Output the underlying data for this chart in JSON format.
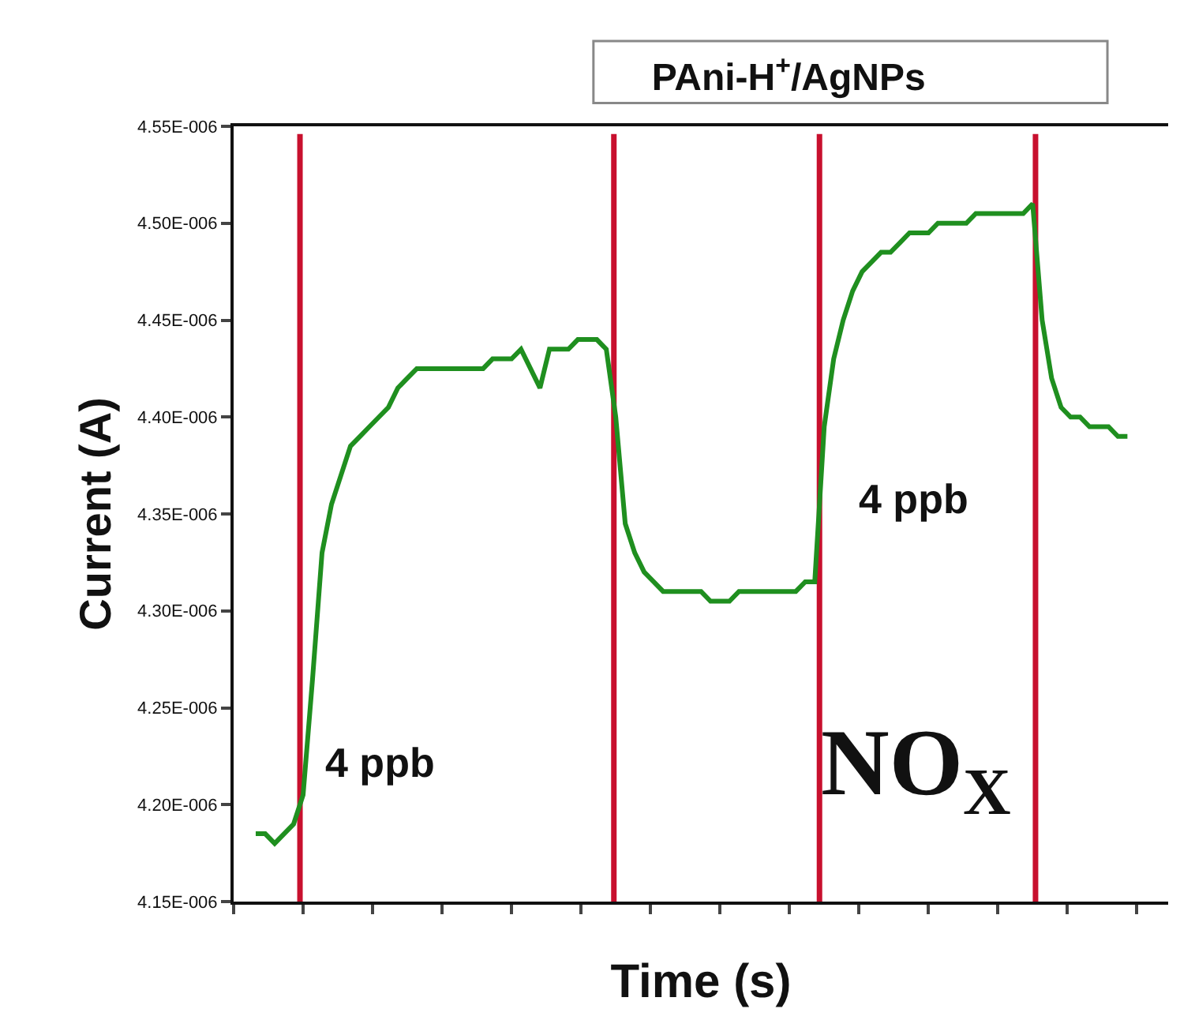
{
  "chart_data": {
    "type": "line",
    "title": "PAni-H$^{+}$/AgNPs",
    "xlabel": "Time (s)",
    "ylabel": "Current (A)",
    "categories": [
      null,
      null,
      null,
      null,
      null,
      null,
      null,
      null,
      null,
      null,
      null,
      null,
      null,
      null,
      null,
      null,
      null,
      null,
      null,
      null,
      null,
      null,
      null,
      null,
      null,
      null,
      null,
      null,
      null,
      null,
      null,
      null,
      null,
      null,
      null,
      null,
      null,
      null,
      null,
      null,
      null,
      null,
      null,
      null,
      null,
      null,
      null,
      null,
      null,
      null,
      null,
      null,
      null,
      null,
      null,
      null,
      null,
      null,
      null,
      null,
      null,
      null,
      null,
      null,
      null,
      null,
      null,
      null,
      null,
      null,
      null,
      null,
      null,
      null,
      null,
      null,
      null,
      null,
      null,
      null,
      null,
      null,
      null,
      null,
      null,
      null,
      null,
      null,
      null,
      null,
      null,
      null,
      null
    ],
    "series": [
      {
        "color": "#1f8f1f",
        "values": [
          4.185e-06,
          4.185e-06,
          4.18e-06,
          4.185e-06,
          4.19e-06,
          4.205e-06,
          4.265e-06,
          4.33e-06,
          4.355e-06,
          4.37e-06,
          4.385e-06,
          4.39e-06,
          4.395e-06,
          4.4e-06,
          4.405e-06,
          4.415e-06,
          4.42e-06,
          4.425e-06,
          4.425e-06,
          4.425e-06,
          4.425e-06,
          4.425e-06,
          4.425e-06,
          4.425e-06,
          4.425e-06,
          4.43e-06,
          4.43e-06,
          4.43e-06,
          4.435e-06,
          4.425e-06,
          4.415e-06,
          4.435e-06,
          4.435e-06,
          4.435e-06,
          4.44e-06,
          4.44e-06,
          4.44e-06,
          4.435e-06,
          4.4e-06,
          4.345e-06,
          4.33e-06,
          4.32e-06,
          4.315e-06,
          4.31e-06,
          4.31e-06,
          4.31e-06,
          4.31e-06,
          4.31e-06,
          4.305e-06,
          4.305e-06,
          4.305e-06,
          4.31e-06,
          4.31e-06,
          4.31e-06,
          4.31e-06,
          4.31e-06,
          4.31e-06,
          4.31e-06,
          4.315e-06,
          4.315e-06,
          4.395e-06,
          4.43e-06,
          4.45e-06,
          4.465e-06,
          4.475e-06,
          4.48e-06,
          4.485e-06,
          4.485e-06,
          4.49e-06,
          4.495e-06,
          4.495e-06,
          4.495e-06,
          4.5e-06,
          4.5e-06,
          4.5e-06,
          4.5e-06,
          4.505e-06,
          4.505e-06,
          4.505e-06,
          4.505e-06,
          4.505e-06,
          4.505e-06,
          4.51e-06,
          4.45e-06,
          4.42e-06,
          4.405e-06,
          4.4e-06,
          4.4e-06,
          4.395e-06,
          4.395e-06,
          4.395e-06,
          4.39e-06,
          4.39e-06
        ]
      }
    ],
    "ylim": [
      4.15e-06,
      4.55e-06
    ],
    "yticks": [
      {
        "value": 4.15e-06,
        "label": "4.15E-006"
      },
      {
        "value": 4.2e-06,
        "label": "4.20E-006"
      },
      {
        "value": 4.25e-06,
        "label": "4.25E-006"
      },
      {
        "value": 4.3e-06,
        "label": "4.30E-006"
      },
      {
        "value": 4.35e-06,
        "label": "4.35E-006"
      },
      {
        "value": 4.4e-06,
        "label": "4.40E-006"
      },
      {
        "value": 4.45e-06,
        "label": "4.45E-006"
      },
      {
        "value": 4.5e-06,
        "label": "4.50E-006"
      },
      {
        "value": 4.55e-06,
        "label": "4.55E-006"
      }
    ],
    "annotations": [
      "4 ppb",
      "4 ppb",
      "NO$_{X}$"
    ],
    "tick_labels": "y",
    "grid": false,
    "marker": "none",
    "line_style": "solid"
  }
}
